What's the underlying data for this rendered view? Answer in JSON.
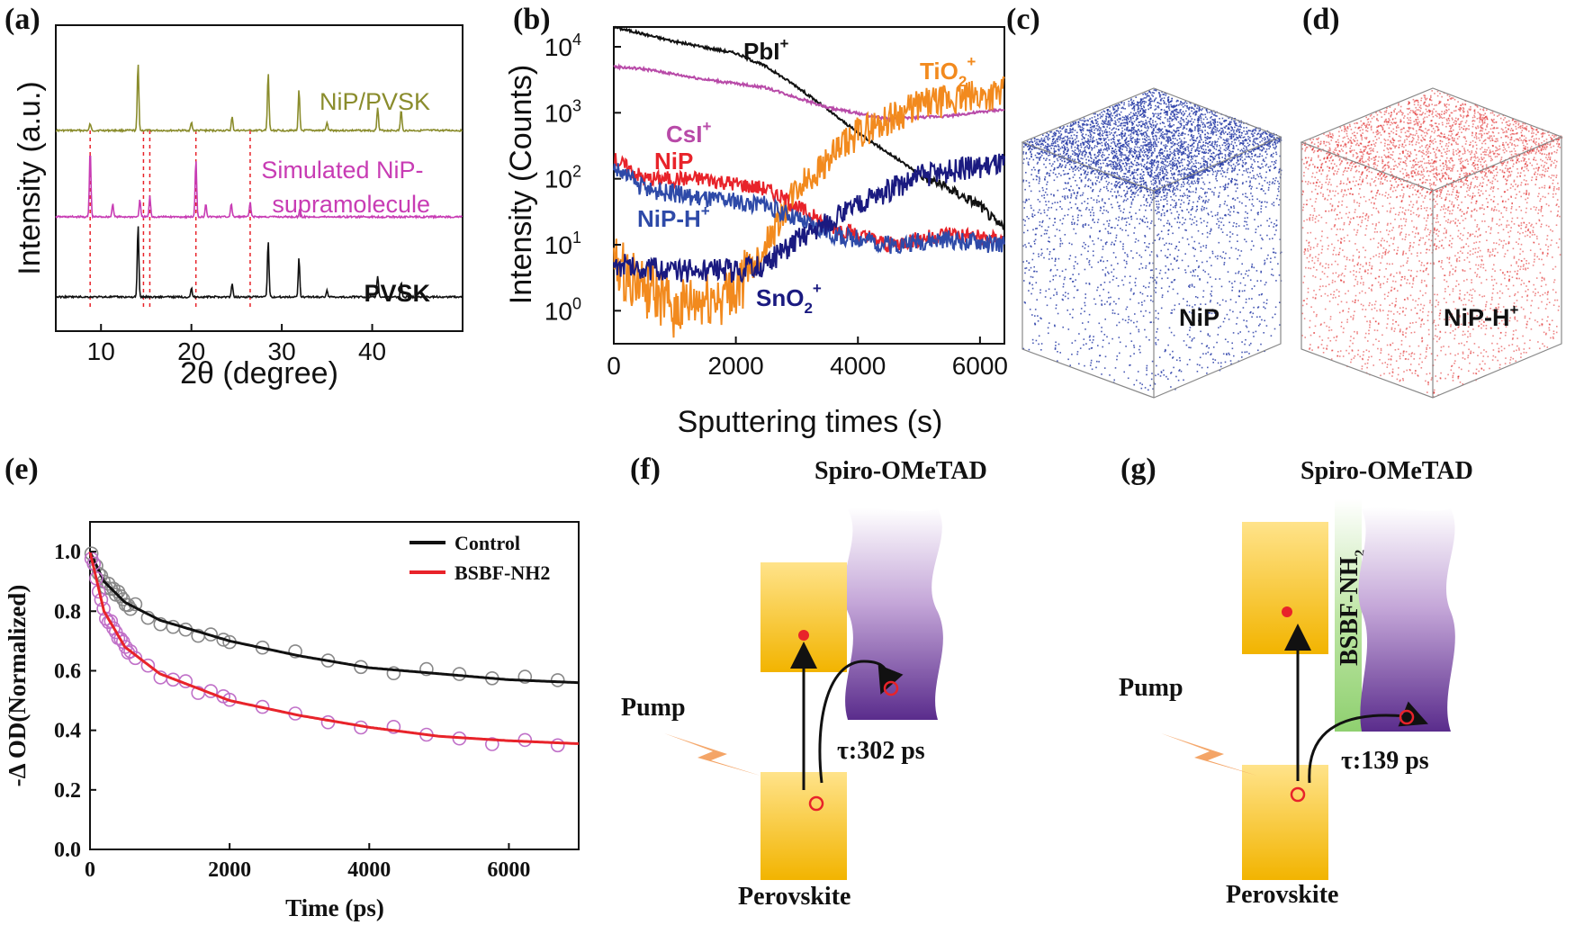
{
  "panels": {
    "a": "(a)",
    "b": "(b)",
    "c": "(c)",
    "d": "(d)",
    "e": "(e)",
    "f": "(f)",
    "g": "(g)"
  },
  "chart_data": [
    {
      "panel": "a",
      "type": "line",
      "title": "",
      "xlabel": "2θ (degree)",
      "ylabel": "Intensity (a.u.)",
      "xlim": [
        5,
        50
      ],
      "xticks": [
        10,
        20,
        30,
        40
      ],
      "series": [
        {
          "name": "NiP/PVSK",
          "color": "#8a8c2c",
          "peaks": [
            [
              8.8,
              0.1
            ],
            [
              14.1,
              1.0
            ],
            [
              20.0,
              0.12
            ],
            [
              24.5,
              0.2
            ],
            [
              28.5,
              0.85
            ],
            [
              31.9,
              0.6
            ],
            [
              35.0,
              0.12
            ],
            [
              40.6,
              0.35
            ],
            [
              43.2,
              0.3
            ]
          ]
        },
        {
          "name": "Simulated NiP-supramolecule",
          "color": "#c83cb4",
          "peaks": [
            [
              8.8,
              1.0
            ],
            [
              11.3,
              0.2
            ],
            [
              14.3,
              0.25
            ],
            [
              15.4,
              0.3
            ],
            [
              20.5,
              0.85
            ],
            [
              21.6,
              0.2
            ],
            [
              24.4,
              0.2
            ],
            [
              26.5,
              0.22
            ],
            [
              32.0,
              0.12
            ]
          ]
        },
        {
          "name": "PVSK",
          "color": "#111111",
          "peaks": [
            [
              14.1,
              1.0
            ],
            [
              20.0,
              0.12
            ],
            [
              24.5,
              0.18
            ],
            [
              28.5,
              0.78
            ],
            [
              31.9,
              0.55
            ],
            [
              35.0,
              0.1
            ],
            [
              40.6,
              0.3
            ],
            [
              43.2,
              0.2
            ]
          ]
        }
      ],
      "reference_lines_2theta": [
        8.8,
        14.7,
        15.4,
        20.5,
        26.5
      ]
    },
    {
      "panel": "b",
      "type": "line",
      "title": "",
      "xlabel": "Sputtering times (s)",
      "ylabel": "Intensity (Counts)",
      "xlim": [
        0,
        6400
      ],
      "ylim_log10": [
        -0.5,
        4.3
      ],
      "xticks": [
        0,
        2000,
        4000,
        6000
      ],
      "yticks": [
        "10^0",
        "10^1",
        "10^2",
        "10^3",
        "10^4"
      ],
      "series": [
        {
          "name": "PbI+",
          "color": "#111111",
          "points": [
            [
              0,
              20000
            ],
            [
              1000,
              12000
            ],
            [
              2000,
              8000
            ],
            [
              2500,
              5000
            ],
            [
              3000,
              2500
            ],
            [
              4000,
              500
            ],
            [
              5000,
              120
            ],
            [
              6000,
              40
            ],
            [
              6300,
              20
            ]
          ]
        },
        {
          "name": "CsI+",
          "color": "#b84aa8",
          "points": [
            [
              0,
              5000
            ],
            [
              500,
              4600
            ],
            [
              1500,
              3200
            ],
            [
              2500,
              2400
            ],
            [
              3500,
              1200
            ],
            [
              4500,
              800
            ],
            [
              5500,
              900
            ],
            [
              6300,
              1100
            ]
          ]
        },
        {
          "name": "TiO2+",
          "color": "#f28a1e",
          "points": [
            [
              0,
              5
            ],
            [
              1000,
              1
            ],
            [
              2000,
              2
            ],
            [
              2500,
              10
            ],
            [
              3000,
              70
            ],
            [
              4000,
              500
            ],
            [
              5000,
              1300
            ],
            [
              6300,
              2000
            ]
          ]
        },
        {
          "name": "NiP",
          "color": "#e8232a",
          "points": [
            [
              0,
              200
            ],
            [
              500,
              100
            ],
            [
              1500,
              100
            ],
            [
              2500,
              70
            ],
            [
              3500,
              20
            ],
            [
              4500,
              10
            ],
            [
              5500,
              15
            ],
            [
              6300,
              12
            ]
          ]
        },
        {
          "name": "NiP-H+",
          "color": "#2e4aa8",
          "points": [
            [
              0,
              150
            ],
            [
              500,
              70
            ],
            [
              1500,
              50
            ],
            [
              2500,
              40
            ],
            [
              3500,
              15
            ],
            [
              4500,
              10
            ],
            [
              5500,
              12
            ],
            [
              6300,
              10
            ]
          ]
        },
        {
          "name": "SnO2+",
          "color": "#1a1a80",
          "points": [
            [
              0,
              5
            ],
            [
              1000,
              4
            ],
            [
              2000,
              4
            ],
            [
              2500,
              5
            ],
            [
              3000,
              12
            ],
            [
              4000,
              40
            ],
            [
              5000,
              110
            ],
            [
              6300,
              170
            ]
          ]
        }
      ],
      "labels": {
        "pbi": "PbI",
        "csi": "CsI",
        "tio2": "TiO",
        "nip": "NiP",
        "niph": "NiP-H",
        "sno2": "SnO",
        "plus": "+",
        "two": "2"
      }
    },
    {
      "panel": "e",
      "type": "line",
      "title": "",
      "xlabel": "Time (ps)",
      "ylabel": "-Δ OD(Normalized)",
      "xlim": [
        0,
        7000
      ],
      "ylim": [
        0.0,
        1.1
      ],
      "xticks": [
        0,
        2000,
        4000,
        6000
      ],
      "yticks": [
        0.0,
        0.2,
        0.4,
        0.6,
        0.8,
        1.0
      ],
      "series": [
        {
          "name": "Control",
          "color": "#111111",
          "marker_color": "#888888",
          "fit": [
            [
              0,
              1.0
            ],
            [
              200,
              0.9
            ],
            [
              500,
              0.83
            ],
            [
              1000,
              0.77
            ],
            [
              2000,
              0.7
            ],
            [
              3000,
              0.65
            ],
            [
              4000,
              0.61
            ],
            [
              5000,
              0.59
            ],
            [
              6000,
              0.57
            ],
            [
              7000,
              0.56
            ]
          ]
        },
        {
          "name": "BSBF-NH2",
          "color": "#e8232a",
          "marker_color": "#c070c8",
          "fit": [
            [
              0,
              1.0
            ],
            [
              200,
              0.8
            ],
            [
              500,
              0.68
            ],
            [
              1000,
              0.59
            ],
            [
              2000,
              0.5
            ],
            [
              3000,
              0.45
            ],
            [
              4000,
              0.41
            ],
            [
              5000,
              0.38
            ],
            [
              6000,
              0.365
            ],
            [
              7000,
              0.355
            ]
          ]
        }
      ],
      "legend": {
        "control": "Control",
        "bsbf": "BSBF-NH",
        "sub": "2"
      }
    }
  ],
  "panel_c": {
    "label": "NiP",
    "color": "#2a3ea8"
  },
  "panel_d": {
    "label": "NiP-H",
    "sup": "+",
    "color": "#e02525"
  },
  "panel_f": {
    "top": "Spiro-OMeTAD",
    "pump": "Pump",
    "tau": "τ:302 ps",
    "bottom": "Perovskite"
  },
  "panel_g": {
    "top": "Spiro-OMeTAD",
    "pump": "Pump",
    "tau": "τ:139 ps",
    "bottom": "Perovskite",
    "layer": "BSBF-NH",
    "layer_sub": "2"
  }
}
